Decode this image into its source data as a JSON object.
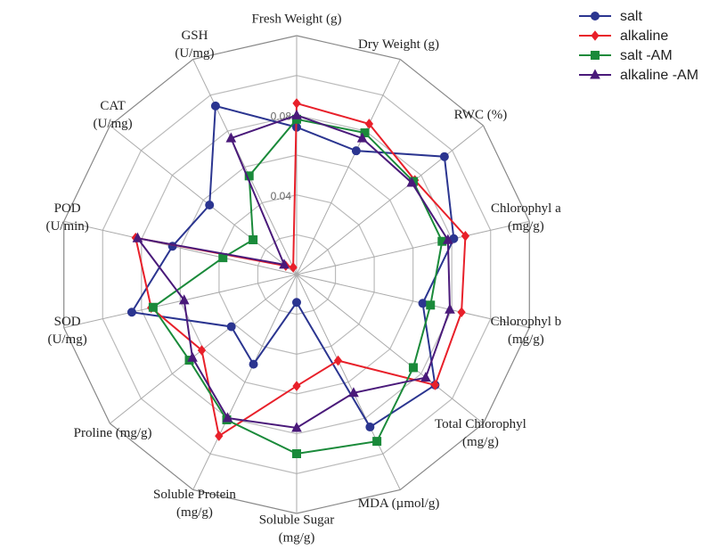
{
  "chart_data": {
    "type": "radar",
    "categories": [
      [
        "Fresh Weight (g)"
      ],
      [
        "Dry Weight (g)"
      ],
      [
        "RWC (%)"
      ],
      [
        "Chlorophyl a",
        "(mg/g)"
      ],
      [
        "Chlorophyl b",
        "(mg/g)"
      ],
      [
        "Total Chlorophyl",
        "(mg/g)"
      ],
      [
        "MDA (µmol/g)"
      ],
      [
        "Soluble Sugar",
        "(mg/g)"
      ],
      [
        "Soluble Protein",
        "(mg/g)"
      ],
      [
        "Proline (mg/g)"
      ],
      [
        "SOD",
        "(U/mg)"
      ],
      [
        "POD",
        "(U/min)"
      ],
      [
        "CAT",
        "(U/mg)"
      ],
      [
        "GSH",
        "(U/mg)"
      ]
    ],
    "rlim": [
      0,
      0.12
    ],
    "rticks": [
      0.04,
      0.08
    ],
    "rgrid": [
      0.02,
      0.04,
      0.06,
      0.08,
      0.1,
      0.12
    ],
    "series": [
      {
        "name": "salt",
        "color": "#2b3590",
        "marker": "circle",
        "values": [
          0.074,
          0.069,
          0.095,
          0.081,
          0.065,
          0.089,
          0.085,
          0.014,
          0.05,
          0.042,
          0.085,
          0.064,
          0.056,
          0.094
        ]
      },
      {
        "name": "alkaline",
        "color": "#e8202a",
        "marker": "diamond",
        "values": [
          0.086,
          0.084,
          0.076,
          0.087,
          0.085,
          0.089,
          0.048,
          0.056,
          0.09,
          0.061,
          0.075,
          0.083,
          0.007,
          0.004
        ]
      },
      {
        "name": "salt -AM",
        "color": "#1a8a3a",
        "marker": "square",
        "values": [
          0.078,
          0.079,
          0.075,
          0.075,
          0.069,
          0.075,
          0.093,
          0.09,
          0.081,
          0.069,
          0.074,
          0.038,
          0.028,
          0.055
        ]
      },
      {
        "name": "alkaline -AM",
        "color": "#4a1a7a",
        "marker": "triangle",
        "values": [
          0.08,
          0.076,
          0.074,
          0.078,
          0.079,
          0.083,
          0.066,
          0.077,
          0.08,
          0.067,
          0.058,
          0.082,
          0.008,
          0.076
        ]
      }
    ],
    "legend": "upper right"
  }
}
